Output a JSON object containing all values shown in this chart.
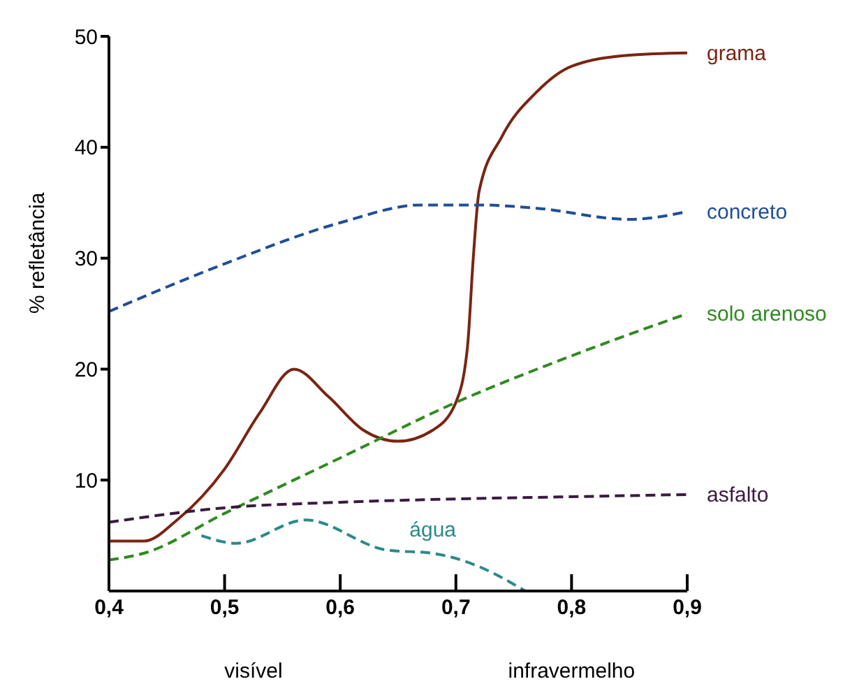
{
  "chart_data": {
    "type": "line",
    "ylabel": "% refletância",
    "xlim": [
      0.4,
      0.9
    ],
    "ylim": [
      0,
      50
    ],
    "xticks": [
      {
        "value": 0.4,
        "label": "0,4"
      },
      {
        "value": 0.5,
        "label": "0,5"
      },
      {
        "value": 0.6,
        "label": "0,6"
      },
      {
        "value": 0.7,
        "label": "0,7"
      },
      {
        "value": 0.8,
        "label": "0,8"
      },
      {
        "value": 0.9,
        "label": "0,9"
      }
    ],
    "yticks": [
      10,
      20,
      30,
      40,
      50
    ],
    "grid": false,
    "legend": false,
    "marker": "none",
    "annotations": [
      "visível",
      "infravermelho"
    ],
    "series": [
      {
        "name": "grama",
        "color": "#7a2412",
        "line_style": "solid",
        "x": [
          0.4,
          0.43,
          0.46,
          0.5,
          0.53,
          0.56,
          0.59,
          0.62,
          0.65,
          0.68,
          0.7,
          0.71,
          0.715,
          0.72,
          0.74,
          0.77,
          0.8,
          0.85,
          0.9
        ],
        "values": [
          4.5,
          4.5,
          6.5,
          11,
          16,
          20,
          17.5,
          14.5,
          13.5,
          14.5,
          17,
          22,
          30,
          36,
          41,
          45,
          47.3,
          48.3,
          48.5
        ]
      },
      {
        "name": "concreto",
        "color": "#1f4e9a",
        "line_style": "dashed",
        "x": [
          0.4,
          0.5,
          0.6,
          0.67,
          0.72,
          0.77,
          0.85,
          0.9
        ],
        "values": [
          25.2,
          29.5,
          33.2,
          34.8,
          34.8,
          34.5,
          33.5,
          34.2
        ]
      },
      {
        "name": "solo arenoso",
        "color": "#2e8b1e",
        "line_style": "dashed",
        "x": [
          0.4,
          0.43,
          0.5,
          0.6,
          0.7,
          0.8,
          0.9
        ],
        "values": [
          2.8,
          3.4,
          7,
          12,
          17,
          21.2,
          25
        ]
      },
      {
        "name": "asfalto",
        "color": "#3a1a40",
        "line_style": "dashed",
        "x": [
          0.4,
          0.5,
          0.6,
          0.7,
          0.8,
          0.9
        ],
        "values": [
          6.2,
          7.5,
          8,
          8.3,
          8.5,
          8.7
        ]
      },
      {
        "name": "água",
        "color": "#2a8a8a",
        "line_style": "dashed",
        "x": [
          0.48,
          0.51,
          0.57,
          0.64,
          0.68,
          0.72,
          0.76
        ],
        "values": [
          5,
          4.3,
          6.4,
          3.7,
          3.4,
          2.2,
          0
        ]
      }
    ]
  }
}
